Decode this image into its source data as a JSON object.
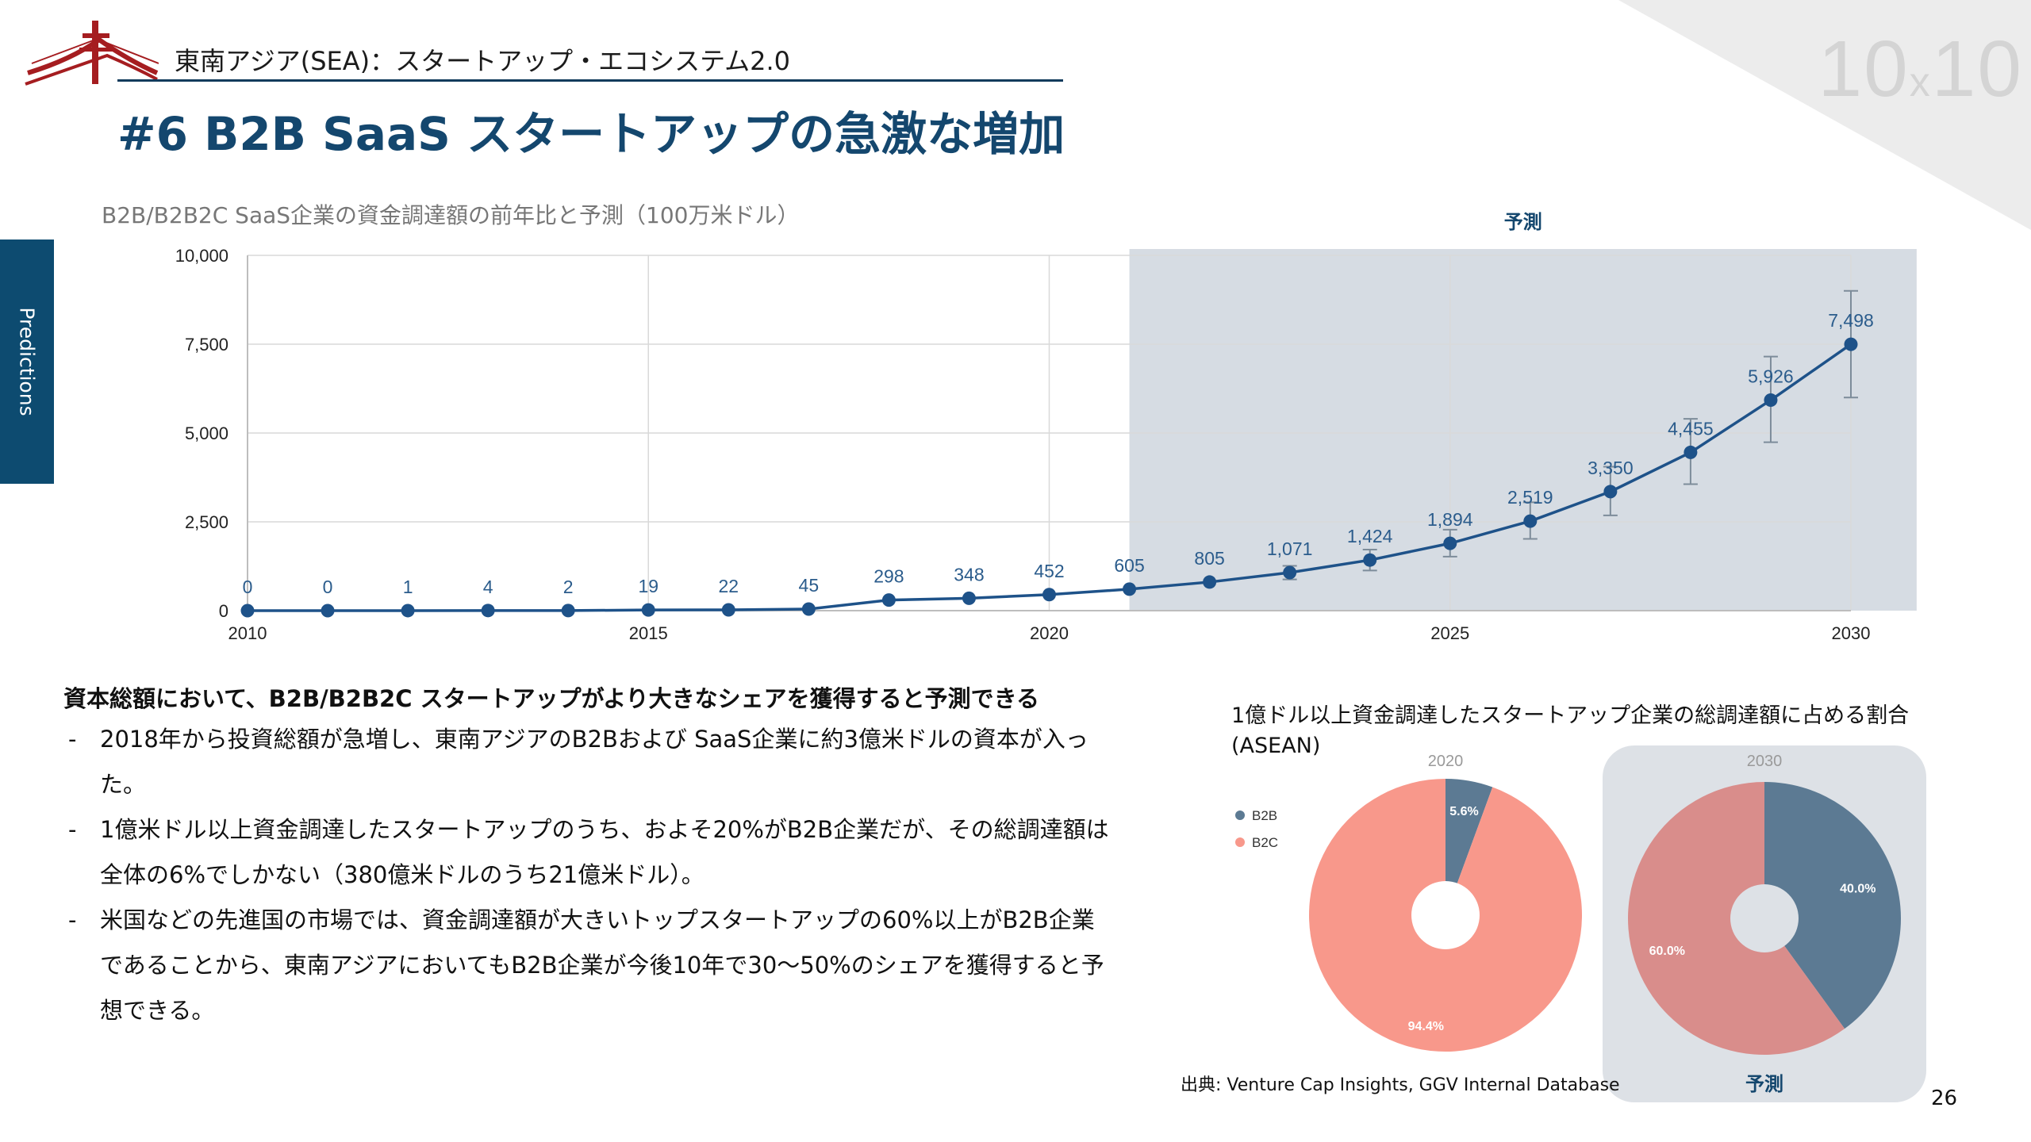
{
  "header": {
    "subtitle": "東南アジア(SEA)：スタートアップ・エコシステム2.0",
    "title": "#6 B2B SaaS スタートアップの急激な増加",
    "brand_main": "10",
    "brand_x": "x",
    "brand_tail": "10"
  },
  "sidebar": {
    "tab_label": "Predictions"
  },
  "colors": {
    "navy": "#14476e",
    "line": "#1e5289",
    "forecast_shade": "#d6dce3",
    "b2b": "#5c7a93",
    "b2c": "#f8988b",
    "b2c_2030": "#d98d8b"
  },
  "line_chart": {
    "title": "B2B/B2B2C SaaS企業の資金調達額の前年比と予測（100万米ドル）",
    "forecast_label": "予測"
  },
  "chart_data": [
    {
      "type": "line",
      "title": "B2B/B2B2C SaaS企業の資金調達額の前年比と予測（100万米ドル）",
      "x": [
        2010,
        2011,
        2012,
        2013,
        2014,
        2015,
        2016,
        2017,
        2018,
        2019,
        2020,
        2021,
        2022,
        2023,
        2024,
        2025,
        2026,
        2027,
        2028,
        2029,
        2030
      ],
      "series": [
        {
          "values": [
            0,
            0,
            1,
            4,
            2,
            19,
            22,
            45,
            298,
            348,
            452,
            605,
            805,
            1071,
            1424,
            1894,
            2519,
            3350,
            4455,
            5926,
            7498
          ],
          "labels": [
            "0",
            "0",
            "1",
            "4",
            "2",
            "19",
            "22",
            "45",
            "298",
            "348",
            "452",
            "605",
            "805",
            "1,071",
            "1,424",
            "1,894",
            "2,519",
            "3,350",
            "4,455",
            "5,926",
            "7,498"
          ]
        }
      ],
      "error_bars": [
        {
          "x": 2023,
          "low": 880,
          "high": 1260
        },
        {
          "x": 2024,
          "low": 1130,
          "high": 1720
        },
        {
          "x": 2025,
          "low": 1520,
          "high": 2280
        },
        {
          "x": 2026,
          "low": 2020,
          "high": 3050
        },
        {
          "x": 2027,
          "low": 2680,
          "high": 4050
        },
        {
          "x": 2028,
          "low": 3560,
          "high": 5400
        },
        {
          "x": 2029,
          "low": 4740,
          "high": 7150
        },
        {
          "x": 2030,
          "low": 6000,
          "high": 9000
        }
      ],
      "forecast_range": [
        2021,
        2031
      ],
      "ylim": [
        0,
        10000
      ],
      "y_ticks": [
        "0",
        "2,500",
        "5,000",
        "7,500",
        "10,000"
      ],
      "x_ticks": [
        "2010",
        "2015",
        "2020",
        "2025",
        "2030"
      ],
      "grid": true
    },
    {
      "type": "pie",
      "title": "2020",
      "labels": [
        "B2B",
        "B2C"
      ],
      "values": [
        5.6,
        94.4
      ],
      "value_labels": [
        "5.6%",
        "94.4%"
      ],
      "legend": "left"
    },
    {
      "type": "pie",
      "title": "2030",
      "labels": [
        "B2B",
        "B2C"
      ],
      "values": [
        40.0,
        60.0
      ],
      "value_labels": [
        "40.0%",
        "60.0%"
      ],
      "footer": "予測"
    }
  ],
  "bullets": {
    "heading": "資本総額において、B2B/B2B2C スタートアップがより大きなシェアを獲得すると予測できる",
    "items": [
      "2018年から投資総額が急増し、東南アジアのB2Bおよび SaaS企業に約3億米ドルの資本が入った。",
      "1億米ドル以上資金調達したスタートアップのうち、およそ20%がB2B企業だが、その総調達額は全体の6%でしかない（380億米ドルのうち21億米ドル）。",
      "米国などの先進国の市場では、資金調達額が大きいトップスタートアップの60%以上がB2B企業であることから、東南アジアにおいてもB2B企業が今後10年で30〜50%のシェアを獲得すると予想できる。"
    ],
    "dash": "-"
  },
  "pie_section": {
    "title": "1億ドル以上資金調達したスタートアップ企業の総調達額に占める割合(ASEAN)"
  },
  "footer": {
    "source": "出典:  Venture Cap Insights, GGV Internal Database",
    "page_number": "26"
  }
}
